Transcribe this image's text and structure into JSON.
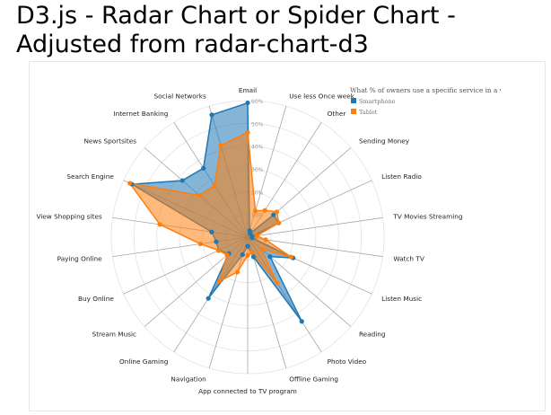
{
  "page": {
    "title": "D3.js - Radar Chart or Spider Chart - Adjusted from radar-chart-d3"
  },
  "chart_data": {
    "type": "radar",
    "title": "",
    "legend_title": "What % of owners use a specific service in a week",
    "legend_position": "top-right",
    "max_value": 60,
    "ticks": [
      "10%",
      "20%",
      "30%",
      "40%",
      "50%",
      "60%"
    ],
    "axes": [
      "Email",
      "Use less Once week",
      "Other",
      "Sending Money",
      "Listen Radio",
      "TV Movies Streaming",
      "Watch TV",
      "Listen Music",
      "Reading",
      "Photo Video",
      "Offline Gaming",
      "App connected to TV program",
      "Navigation",
      "Online Gaming",
      "Stream Music",
      "Buy Online",
      "Paying Online",
      "View Shopping sites",
      "Search Engine",
      "News Sportsites",
      "Internet Banking",
      "Social Networks"
    ],
    "series": [
      {
        "name": "Smartphone",
        "color": "#1f77b4",
        "values": [
          59,
          3,
          2,
          15,
          15,
          2,
          2,
          22,
          13,
          44,
          9,
          4,
          8,
          32,
          11,
          14,
          14,
          16,
          56,
          38,
          36,
          56
        ]
      },
      {
        "name": "Tablet",
        "color": "#ff7f0e",
        "values": [
          46,
          12,
          14,
          17,
          15,
          4,
          8,
          21,
          8,
          24,
          7,
          8,
          16,
          23,
          12,
          14,
          21,
          39,
          57,
          28,
          27,
          42
        ]
      }
    ]
  }
}
